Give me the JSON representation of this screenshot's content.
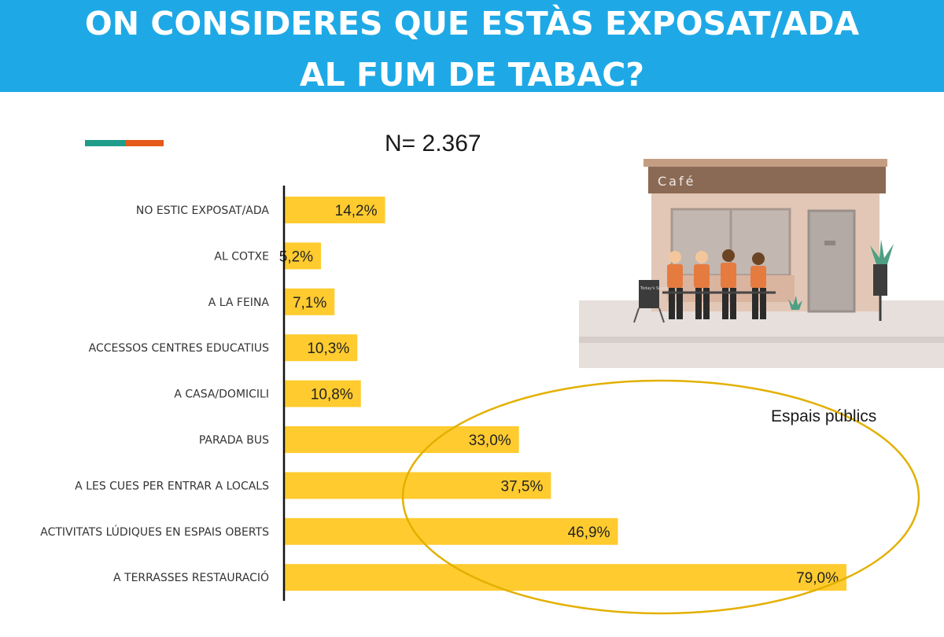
{
  "header": {
    "title_line_1": "ON CONSIDERES QUE ESTÀS EXPOSAT/ADA",
    "title_line_2": "AL FUM DE TABAC?"
  },
  "sample_size": "N= 2.367",
  "illustration": {
    "sign_text": "Café",
    "board_text": "Today's Special"
  },
  "colors": {
    "header": "#1ea9e6",
    "bar": "#ffcb2f",
    "ellipse": "#e3b000",
    "accent_teal": "#1f9c8a",
    "accent_orange": "#e55a18"
  },
  "chart_data": {
    "type": "bar",
    "orientation": "horizontal",
    "categories": [
      "NO ESTIC EXPOSAT/ADA",
      "AL COTXE",
      "A LA FEINA",
      "ACCESSOS CENTRES EDUCATIUS",
      "A CASA/DOMICILI",
      "PARADA BUS",
      "A LES CUES PER ENTRAR A LOCALS",
      "ACTIVITATS LÚDIQUES EN ESPAIS OBERTS",
      "A TERRASSES RESTAURACIÓ"
    ],
    "values": [
      14.2,
      5.2,
      7.1,
      10.3,
      10.8,
      33.0,
      37.5,
      46.9,
      79.0
    ],
    "value_labels": [
      "14,2%",
      "5,2%",
      "7,1%",
      "10,3%",
      "10,8%",
      "33,0%",
      "37,5%",
      "46,9%",
      "79,0%"
    ],
    "xlim": [
      0,
      100
    ],
    "grid": false,
    "legend": "none",
    "annotation": {
      "label": "Espais públics",
      "shape": "ellipse",
      "highlights": [
        "PARADA BUS",
        "A LES CUES PER ENTRAR A LOCALS",
        "ACTIVITATS LÚDIQUES EN ESPAIS OBERTS",
        "A TERRASSES RESTAURACIÓ"
      ]
    }
  }
}
